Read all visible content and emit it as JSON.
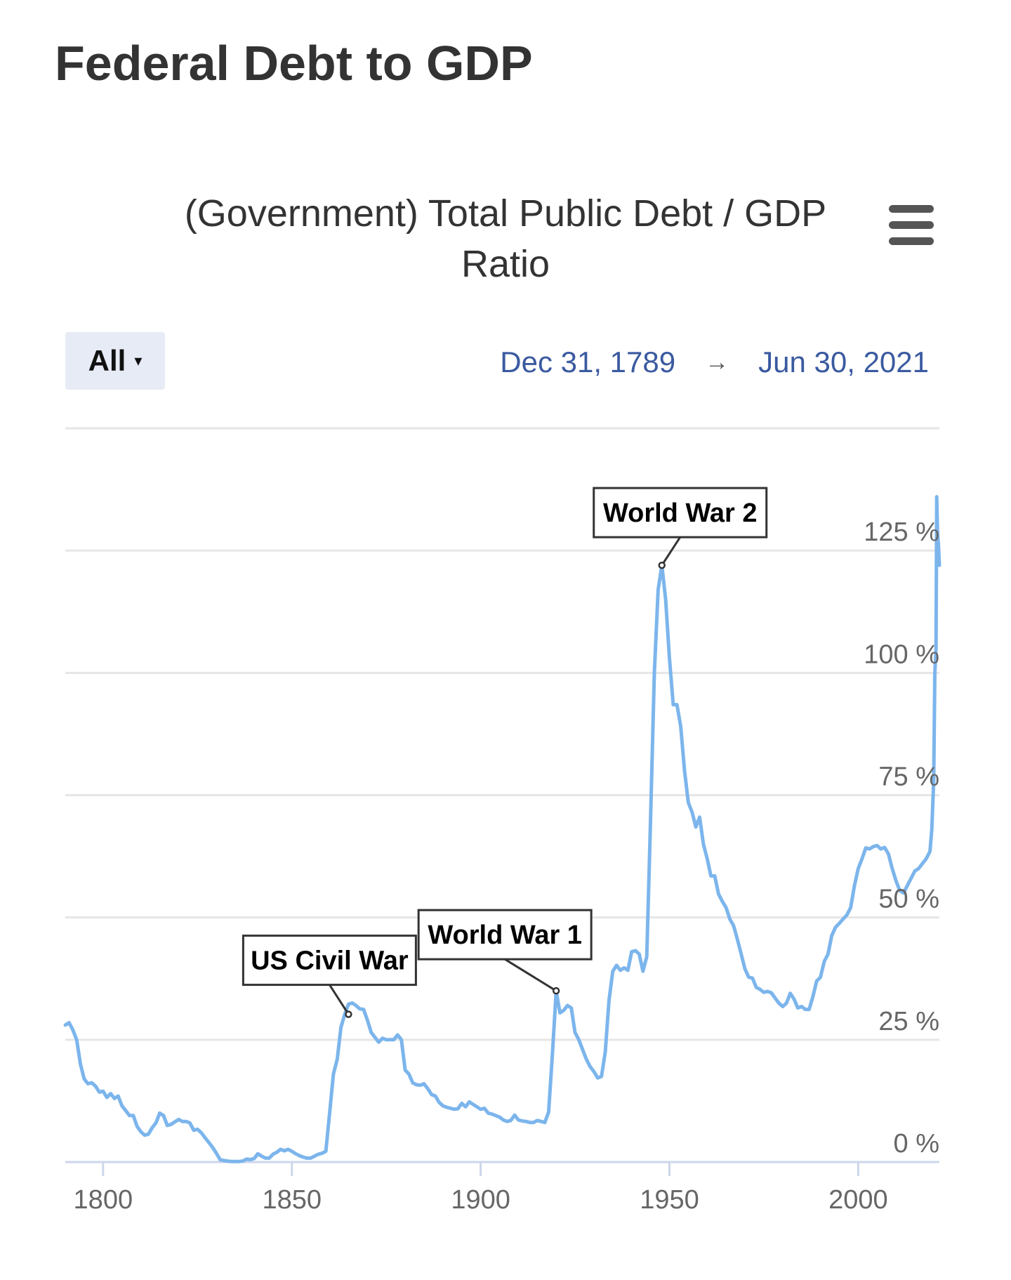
{
  "page": {
    "title": "Federal Debt to GDP"
  },
  "controls": {
    "range_label": "All",
    "range_caret": "▾",
    "date_from": "Dec 31, 1789",
    "date_arrow": "→",
    "date_to": "Jun 30, 2021",
    "menu_icon": "hamburger-menu-icon"
  },
  "colors": {
    "series": "#7cb5ec",
    "grid": "#e6e6e6",
    "axis": "#ccd6eb",
    "date_text": "#3a5aa0",
    "range_button_bg": "#e6ebf5"
  },
  "chart_data": {
    "type": "line",
    "title": "(Government) Total Public Debt / GDP Ratio",
    "title_lines": [
      "(Government) Total Public Debt / GDP",
      "Ratio"
    ],
    "xlabel": "",
    "ylabel": "",
    "xlim": [
      1789.99,
      2021.5
    ],
    "ylim": [
      0,
      150
    ],
    "x_ticks": [
      1800,
      1850,
      1900,
      1950,
      2000
    ],
    "y_ticks": [
      {
        "value": 0,
        "label": "0 %"
      },
      {
        "value": 25,
        "label": "25 %"
      },
      {
        "value": 50,
        "label": "50 %"
      },
      {
        "value": 75,
        "label": "75 %"
      },
      {
        "value": 100,
        "label": "100 %"
      },
      {
        "value": 125,
        "label": "125 %"
      }
    ],
    "grid": true,
    "legend": false,
    "series": [
      {
        "points": [
          [
            1790,
            28
          ],
          [
            1791,
            28.5
          ],
          [
            1792,
            27
          ],
          [
            1793,
            25
          ],
          [
            1794,
            20
          ],
          [
            1795,
            17
          ],
          [
            1796,
            16
          ],
          [
            1797,
            16.2
          ],
          [
            1798,
            15.5
          ],
          [
            1799,
            14.3
          ],
          [
            1800,
            14.5
          ],
          [
            1801,
            13.2
          ],
          [
            1802,
            14
          ],
          [
            1803,
            13
          ],
          [
            1804,
            13.5
          ],
          [
            1805,
            11.5
          ],
          [
            1806,
            10.5
          ],
          [
            1807,
            9.5
          ],
          [
            1808,
            9.5
          ],
          [
            1809,
            7.3
          ],
          [
            1810,
            6.2
          ],
          [
            1811,
            5.5
          ],
          [
            1812,
            5.7
          ],
          [
            1813,
            7
          ],
          [
            1814,
            8
          ],
          [
            1815,
            10
          ],
          [
            1816,
            9.5
          ],
          [
            1817,
            7.5
          ],
          [
            1818,
            7.7
          ],
          [
            1819,
            8.2
          ],
          [
            1820,
            8.7
          ],
          [
            1821,
            8.3
          ],
          [
            1822,
            8.3
          ],
          [
            1823,
            8
          ],
          [
            1824,
            6.5
          ],
          [
            1825,
            6.7
          ],
          [
            1826,
            6
          ],
          [
            1827,
            5
          ],
          [
            1828,
            4
          ],
          [
            1829,
            3
          ],
          [
            1830,
            1.8
          ],
          [
            1831,
            0.5
          ],
          [
            1832,
            0.3
          ],
          [
            1833,
            0.2
          ],
          [
            1834,
            0.1
          ],
          [
            1835,
            0.1
          ],
          [
            1836,
            0.1
          ],
          [
            1837,
            0.2
          ],
          [
            1838,
            0.6
          ],
          [
            1839,
            0.5
          ],
          [
            1840,
            0.7
          ],
          [
            1841,
            1.7
          ],
          [
            1842,
            1.2
          ],
          [
            1843,
            0.8
          ],
          [
            1844,
            0.8
          ],
          [
            1845,
            1.6
          ],
          [
            1846,
            2
          ],
          [
            1847,
            2.6
          ],
          [
            1848,
            2.3
          ],
          [
            1849,
            2.6
          ],
          [
            1850,
            2.2
          ],
          [
            1851,
            1.7
          ],
          [
            1852,
            1.3
          ],
          [
            1853,
            1
          ],
          [
            1854,
            0.8
          ],
          [
            1855,
            0.8
          ],
          [
            1856,
            1.2
          ],
          [
            1857,
            1.6
          ],
          [
            1858,
            1.8
          ],
          [
            1859,
            2.2
          ],
          [
            1860,
            10
          ],
          [
            1861,
            18
          ],
          [
            1862,
            21
          ],
          [
            1863,
            27.5
          ],
          [
            1864,
            30.2
          ],
          [
            1865,
            32.3
          ],
          [
            1866,
            32.5
          ],
          [
            1867,
            32
          ],
          [
            1868,
            31.3
          ],
          [
            1869,
            31.2
          ],
          [
            1870,
            29
          ],
          [
            1871,
            26.5
          ],
          [
            1872,
            25.5
          ],
          [
            1873,
            24.5
          ],
          [
            1874,
            25.3
          ],
          [
            1875,
            25
          ],
          [
            1876,
            25
          ],
          [
            1877,
            25
          ],
          [
            1878,
            26
          ],
          [
            1879,
            25
          ],
          [
            1880,
            18.8
          ],
          [
            1881,
            18
          ],
          [
            1882,
            16.2
          ],
          [
            1883,
            15.8
          ],
          [
            1884,
            15.7
          ],
          [
            1885,
            16
          ],
          [
            1886,
            15
          ],
          [
            1887,
            13.8
          ],
          [
            1888,
            13.5
          ],
          [
            1889,
            12.2
          ],
          [
            1890,
            11.5
          ],
          [
            1891,
            11.2
          ],
          [
            1892,
            11
          ],
          [
            1893,
            10.8
          ],
          [
            1894,
            10.9
          ],
          [
            1895,
            12
          ],
          [
            1896,
            11.3
          ],
          [
            1897,
            12.3
          ],
          [
            1898,
            11.8
          ],
          [
            1899,
            11.3
          ],
          [
            1900,
            10.8
          ],
          [
            1901,
            11
          ],
          [
            1902,
            10
          ],
          [
            1903,
            9.8
          ],
          [
            1904,
            9.5
          ],
          [
            1905,
            9.2
          ],
          [
            1906,
            8.6
          ],
          [
            1907,
            8.3
          ],
          [
            1908,
            8.5
          ],
          [
            1909,
            9.6
          ],
          [
            1910,
            8.6
          ],
          [
            1911,
            8.4
          ],
          [
            1912,
            8.3
          ],
          [
            1913,
            8.1
          ],
          [
            1914,
            8.1
          ],
          [
            1915,
            8.5
          ],
          [
            1916,
            8.3
          ],
          [
            1917,
            8.1
          ],
          [
            1918,
            10.2
          ],
          [
            1919,
            22
          ],
          [
            1920,
            35
          ],
          [
            1921,
            30.5
          ],
          [
            1922,
            31
          ],
          [
            1923,
            32
          ],
          [
            1924,
            31.5
          ],
          [
            1925,
            26.5
          ],
          [
            1926,
            25
          ],
          [
            1927,
            23
          ],
          [
            1928,
            21
          ],
          [
            1929,
            19.5
          ],
          [
            1930,
            18.5
          ],
          [
            1931,
            17.2
          ],
          [
            1932,
            17.5
          ],
          [
            1933,
            22.5
          ],
          [
            1934,
            33
          ],
          [
            1935,
            39
          ],
          [
            1936,
            40.2
          ],
          [
            1937,
            39.2
          ],
          [
            1938,
            39.7
          ],
          [
            1939,
            39.2
          ],
          [
            1940,
            43
          ],
          [
            1941,
            43.2
          ],
          [
            1942,
            42.5
          ],
          [
            1943,
            39
          ],
          [
            1944,
            42
          ],
          [
            1945,
            70
          ],
          [
            1946,
            100
          ],
          [
            1947,
            117
          ],
          [
            1948,
            122
          ],
          [
            1949,
            115
          ],
          [
            1950,
            103
          ],
          [
            1951,
            93.5
          ],
          [
            1952,
            93.5
          ],
          [
            1953,
            89
          ],
          [
            1954,
            80
          ],
          [
            1955,
            73.5
          ],
          [
            1956,
            71.5
          ],
          [
            1957,
            68.5
          ],
          [
            1958,
            70.5
          ],
          [
            1959,
            65
          ],
          [
            1960,
            62
          ],
          [
            1961,
            58.5
          ],
          [
            1962,
            58.5
          ],
          [
            1963,
            54.8
          ],
          [
            1964,
            53.3
          ],
          [
            1965,
            52
          ],
          [
            1966,
            49.7
          ],
          [
            1967,
            48.3
          ],
          [
            1968,
            45.5
          ],
          [
            1969,
            42.5
          ],
          [
            1970,
            39.5
          ],
          [
            1971,
            37.8
          ],
          [
            1972,
            37.6
          ],
          [
            1973,
            35.7
          ],
          [
            1974,
            35.3
          ],
          [
            1975,
            34.7
          ],
          [
            1976,
            34.9
          ],
          [
            1977,
            34.6
          ],
          [
            1978,
            33.5
          ],
          [
            1979,
            32.5
          ],
          [
            1980,
            31.8
          ],
          [
            1981,
            32.5
          ],
          [
            1982,
            34.5
          ],
          [
            1983,
            33.3
          ],
          [
            1984,
            31.5
          ],
          [
            1985,
            31.8
          ],
          [
            1986,
            31.2
          ],
          [
            1987,
            31.2
          ],
          [
            1988,
            33.8
          ],
          [
            1989,
            37
          ],
          [
            1990,
            37.8
          ],
          [
            1991,
            41
          ],
          [
            1992,
            42.5
          ],
          [
            1993,
            46.3
          ],
          [
            1994,
            48
          ],
          [
            1995,
            48.8
          ],
          [
            1996,
            49.7
          ],
          [
            1997,
            50.5
          ],
          [
            1998,
            52
          ],
          [
            1999,
            56.5
          ],
          [
            2000,
            60
          ],
          [
            2001,
            62
          ],
          [
            2002,
            64.2
          ],
          [
            2003,
            64
          ],
          [
            2004,
            64.5
          ],
          [
            2005,
            64.7
          ],
          [
            2006,
            64
          ],
          [
            2007,
            64.3
          ],
          [
            2008,
            63
          ],
          [
            2009,
            60
          ],
          [
            2010,
            57.5
          ],
          [
            2011,
            55.5
          ],
          [
            2012,
            55
          ],
          [
            2013,
            56.5
          ],
          [
            2014,
            58
          ],
          [
            2015,
            59.5
          ],
          [
            2016,
            60
          ],
          [
            2017,
            61
          ],
          [
            2018,
            62
          ],
          [
            2019,
            63.5
          ],
          [
            2019.5,
            68
          ],
          [
            2020,
            78
          ],
          [
            2020.3,
            100
          ],
          [
            2020.6,
            105
          ],
          [
            2020.8,
            136
          ],
          [
            2021,
            129
          ],
          [
            2021.25,
            126
          ],
          [
            2021.5,
            122
          ]
        ]
      }
    ],
    "annotations": [
      {
        "id": "civil-war",
        "text": "US Civil War",
        "x": 1865,
        "y": 30.2
      },
      {
        "id": "ww1",
        "text": "World War 1",
        "x": 1920,
        "y": 35
      },
      {
        "id": "ww2",
        "text": "World War 2",
        "x": 1948,
        "y": 122
      }
    ]
  }
}
